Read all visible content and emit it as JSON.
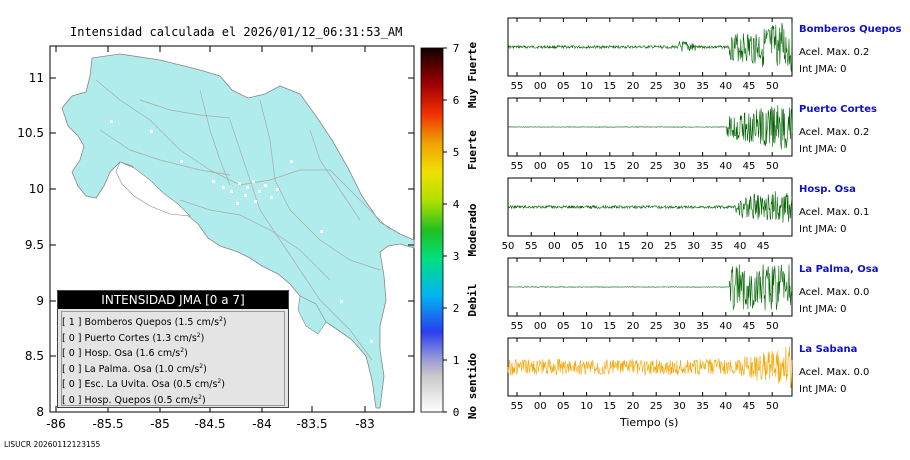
{
  "map": {
    "title": "Intensidad calculada el 2026/01/12_06:31:53_AM",
    "lon_ticks": [
      "-86",
      "-85.5",
      "-85",
      "-84.5",
      "-84",
      "-83.5",
      "-83"
    ],
    "lat_ticks": [
      "11",
      "10.5",
      "10",
      "9.5",
      "9",
      "8.5",
      "8"
    ]
  },
  "colorbar": {
    "ticks": [
      "0",
      "1",
      "2",
      "3",
      "4",
      "5",
      "6",
      "7"
    ],
    "labels": [
      "No sentido",
      "Debil",
      "Moderado",
      "Fuerte",
      "Muy Fuerte"
    ]
  },
  "legend": {
    "title": "INTENSIDAD JMA [0 a 7]",
    "items": [
      {
        "intensity": "[ 1 ]",
        "station": "Bomberos Quepos",
        "value": "(1.5 cm/s",
        "sup": "2",
        "close": ")"
      },
      {
        "intensity": "[ 0 ]",
        "station": "Puerto Cortes",
        "value": "(1.3 cm/s",
        "sup": "2",
        "close": ")"
      },
      {
        "intensity": "[ 0 ]",
        "station": "Hosp. Osa",
        "value": "(1.6 cm/s",
        "sup": "2",
        "close": ")"
      },
      {
        "intensity": "[ 0 ]",
        "station": "La Palma. Osa",
        "value": "(1.0 cm/s",
        "sup": "2",
        "close": ")"
      },
      {
        "intensity": "[ 0 ]",
        "station": "Esc. La Uvita. Osa",
        "value": "(0.5 cm/s",
        "sup": "2",
        "close": ")"
      },
      {
        "intensity": "[ 0 ]",
        "station": "Hosp. Quepos",
        "value": "(0.5 cm/s",
        "sup": "2",
        "close": ")"
      }
    ]
  },
  "traces": {
    "xlabel": "Tiempo (s)",
    "stations": [
      {
        "name": "Bomberos Quepos",
        "acel": "Acel. Max. 0.2",
        "int": "Int JMA: 0",
        "color": "#006400",
        "ticks": [
          "55",
          "00",
          "05",
          "10",
          "15",
          "20",
          "25",
          "30",
          "35",
          "40",
          "45",
          "50"
        ]
      },
      {
        "name": "Puerto Cortes",
        "acel": "Acel. Max. 0.2",
        "int": "Int JMA: 0",
        "color": "#006400",
        "ticks": [
          "55",
          "00",
          "05",
          "10",
          "15",
          "20",
          "25",
          "30",
          "35",
          "40",
          "45",
          "50"
        ]
      },
      {
        "name": "Hosp. Osa",
        "acel": "Acel. Max. 0.1",
        "int": "Int JMA: 0",
        "color": "#006400",
        "ticks": [
          "50",
          "55",
          "00",
          "05",
          "10",
          "15",
          "20",
          "25",
          "30",
          "35",
          "40",
          "45"
        ]
      },
      {
        "name": "La Palma, Osa",
        "acel": "Acel. Max. 0.0",
        "int": "Int JMA: 0",
        "color": "#006400",
        "ticks": [
          "55",
          "00",
          "05",
          "10",
          "15",
          "20",
          "25",
          "30",
          "35",
          "40",
          "45",
          "50"
        ]
      },
      {
        "name": "La Sabana",
        "acel": "Acel. Max. 0.0",
        "int": "Int JMA: 0",
        "color": "#f5a500",
        "ticks": [
          "55",
          "00",
          "05",
          "10",
          "15",
          "20",
          "25",
          "30",
          "35",
          "40",
          "45",
          "50"
        ]
      }
    ]
  },
  "footer": "LISUCR 20260112123155",
  "chart_data": [
    {
      "type": "heatmap",
      "title": "Intensidad calculada el 2026/01/12_06:31:53_AM",
      "xlabel": "",
      "ylabel": "",
      "xlim": [
        -86,
        -82.5
      ],
      "ylim": [
        8,
        11.3
      ],
      "x_ticks": [
        -86,
        -85.5,
        -85,
        -84.5,
        -84,
        -83.5,
        -83
      ],
      "y_ticks": [
        8,
        8.5,
        9,
        9.5,
        10,
        10.5,
        11
      ],
      "colorbar": {
        "range": [
          0,
          7
        ],
        "ticks": [
          0,
          1,
          2,
          3,
          4,
          5,
          6,
          7
        ],
        "categories": [
          "No sentido",
          "Debil",
          "Moderado",
          "Fuerte",
          "Muy Fuerte"
        ]
      },
      "land_color": "#b0ecec",
      "legend_title": "INTENSIDAD JMA [0 a 7]"
    },
    {
      "type": "line",
      "xlabel": "Tiempo (s)",
      "series": [
        {
          "name": "Bomberos Quepos",
          "acel_max": 0.2,
          "int_jma": 0
        },
        {
          "name": "Puerto Cortes",
          "acel_max": 0.2,
          "int_jma": 0
        },
        {
          "name": "Hosp. Osa",
          "acel_max": 0.1,
          "int_jma": 0
        },
        {
          "name": "La Palma, Osa",
          "acel_max": 0.0,
          "int_jma": 0
        },
        {
          "name": "La Sabana",
          "acel_max": 0.0,
          "int_jma": 0
        }
      ]
    }
  ]
}
